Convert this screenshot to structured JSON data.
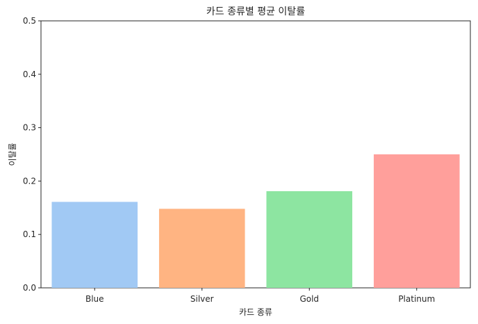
{
  "chart_data": {
    "type": "bar",
    "title": "카드 종류별 평균 이탈률",
    "xlabel": "카드 종류",
    "ylabel": "이탈률",
    "categories": [
      "Blue",
      "Silver",
      "Gold",
      "Platinum"
    ],
    "values": [
      0.161,
      0.148,
      0.181,
      0.25
    ],
    "ylim": [
      0,
      0.5
    ],
    "yticks": [
      "0.0",
      "0.1",
      "0.2",
      "0.3",
      "0.4",
      "0.5"
    ],
    "ytick_values": [
      0,
      0.1,
      0.2,
      0.3,
      0.4,
      0.5
    ],
    "colors": [
      "#a1c9f4",
      "#ffb482",
      "#8de5a1",
      "#ff9f9b"
    ],
    "grid": false,
    "legend": "none"
  }
}
